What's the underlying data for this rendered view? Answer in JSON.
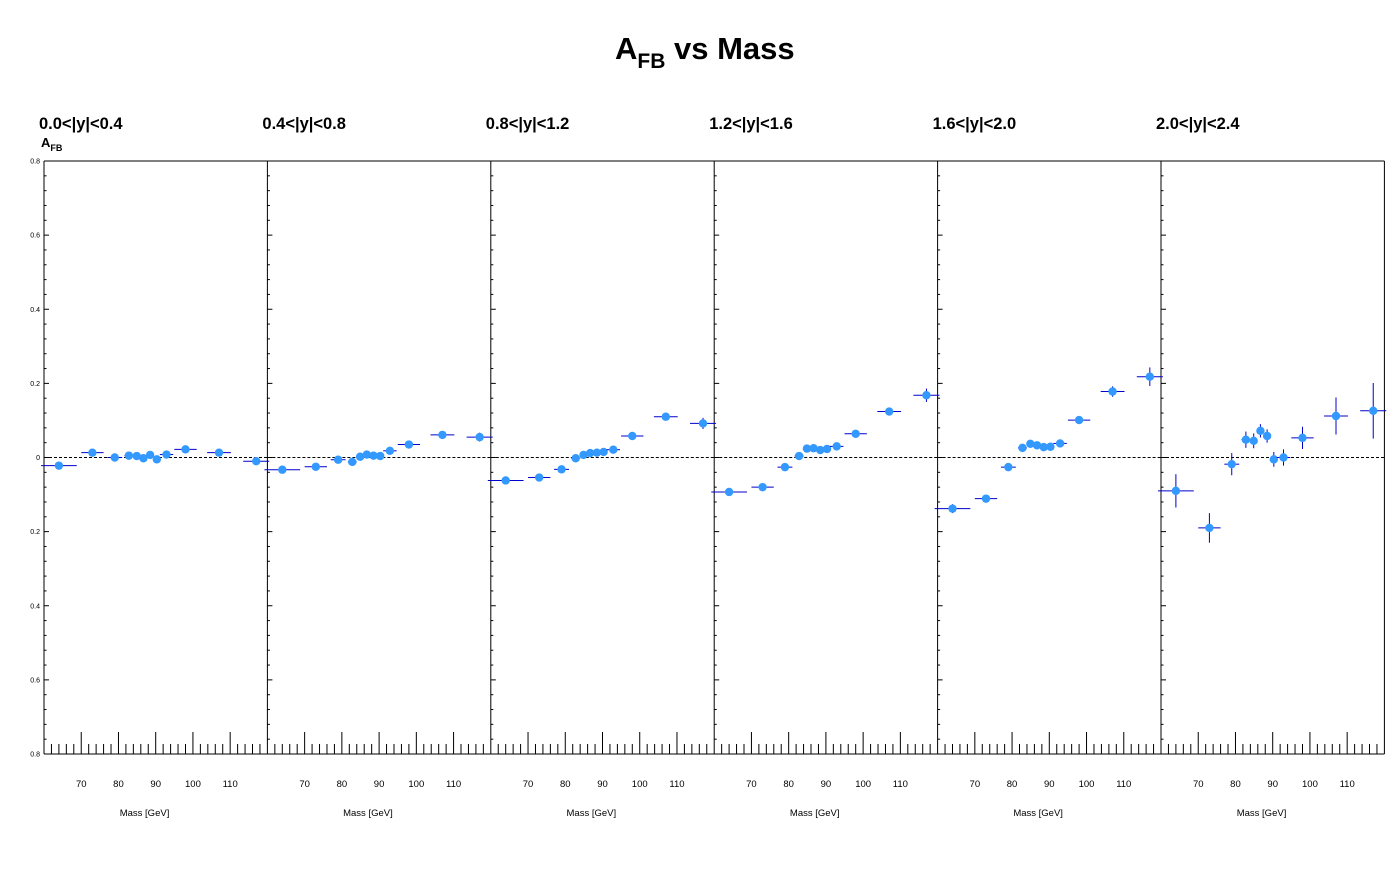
{
  "title_main": "A",
  "title_sub": "FB",
  "title_rest": " vs Mass",
  "ylabel_main": "A",
  "ylabel_sub": "FB",
  "xlabel": "Mass [GeV]",
  "y_tick_labels": [
    "0.8",
    "0.6",
    "0.4",
    "0.2",
    "0",
    "0.2",
    "0.4",
    "0.6",
    "0.8"
  ],
  "x_tick_labels": [
    "70",
    "80",
    "90",
    "100",
    "110"
  ],
  "colors": {
    "marker": "#3399ff",
    "errorbar": "#0000cc",
    "axis": "#000000",
    "zero_line": "#000000"
  },
  "chart_data": [
    {
      "type": "scatter",
      "label": "0.0<|y|<0.4",
      "xlim": [
        60,
        120
      ],
      "ylim": [
        -0.8,
        0.8
      ],
      "points": [
        {
          "x": 64,
          "y": -0.022,
          "xerr": 4.8,
          "yerr": 0.006
        },
        {
          "x": 73,
          "y": 0.013,
          "xerr": 3.0,
          "yerr": 0.005
        },
        {
          "x": 79,
          "y": 0.0,
          "xerr": 2.0,
          "yerr": 0.004
        },
        {
          "x": 82.8,
          "y": 0.005,
          "xerr": 1.2,
          "yerr": 0.004
        },
        {
          "x": 84.9,
          "y": 0.004,
          "xerr": 0.9,
          "yerr": 0.004
        },
        {
          "x": 86.7,
          "y": -0.002,
          "xerr": 0.9,
          "yerr": 0.004
        },
        {
          "x": 88.5,
          "y": 0.007,
          "xerr": 0.9,
          "yerr": 0.004
        },
        {
          "x": 90.3,
          "y": -0.005,
          "xerr": 0.9,
          "yerr": 0.004
        },
        {
          "x": 92.9,
          "y": 0.008,
          "xerr": 1.8,
          "yerr": 0.004
        },
        {
          "x": 98,
          "y": 0.022,
          "xerr": 3.0,
          "yerr": 0.005
        },
        {
          "x": 107,
          "y": 0.013,
          "xerr": 3.2,
          "yerr": 0.006
        },
        {
          "x": 117,
          "y": -0.01,
          "xerr": 3.5,
          "yerr": 0.01
        }
      ]
    },
    {
      "type": "scatter",
      "label": "0.4<|y|<0.8",
      "xlim": [
        60,
        120
      ],
      "ylim": [
        -0.8,
        0.8
      ],
      "points": [
        {
          "x": 64,
          "y": -0.033,
          "xerr": 4.8,
          "yerr": 0.006
        },
        {
          "x": 73,
          "y": -0.025,
          "xerr": 3.0,
          "yerr": 0.005
        },
        {
          "x": 79,
          "y": -0.006,
          "xerr": 2.0,
          "yerr": 0.004
        },
        {
          "x": 82.8,
          "y": -0.012,
          "xerr": 1.2,
          "yerr": 0.004
        },
        {
          "x": 84.9,
          "y": 0.002,
          "xerr": 0.9,
          "yerr": 0.004
        },
        {
          "x": 86.7,
          "y": 0.008,
          "xerr": 0.9,
          "yerr": 0.004
        },
        {
          "x": 88.5,
          "y": 0.005,
          "xerr": 0.9,
          "yerr": 0.004
        },
        {
          "x": 90.3,
          "y": 0.004,
          "xerr": 0.9,
          "yerr": 0.004
        },
        {
          "x": 92.9,
          "y": 0.018,
          "xerr": 1.8,
          "yerr": 0.004
        },
        {
          "x": 98,
          "y": 0.035,
          "xerr": 3.0,
          "yerr": 0.005
        },
        {
          "x": 107,
          "y": 0.061,
          "xerr": 3.2,
          "yerr": 0.007
        },
        {
          "x": 117,
          "y": 0.055,
          "xerr": 3.5,
          "yerr": 0.012
        }
      ]
    },
    {
      "type": "scatter",
      "label": "0.8<|y|<1.2",
      "xlim": [
        60,
        120
      ],
      "ylim": [
        -0.8,
        0.8
      ],
      "points": [
        {
          "x": 64,
          "y": -0.062,
          "xerr": 4.8,
          "yerr": 0.006
        },
        {
          "x": 73,
          "y": -0.054,
          "xerr": 3.0,
          "yerr": 0.005
        },
        {
          "x": 79,
          "y": -0.032,
          "xerr": 2.0,
          "yerr": 0.004
        },
        {
          "x": 82.8,
          "y": -0.002,
          "xerr": 1.2,
          "yerr": 0.004
        },
        {
          "x": 84.9,
          "y": 0.007,
          "xerr": 0.9,
          "yerr": 0.004
        },
        {
          "x": 86.7,
          "y": 0.012,
          "xerr": 0.9,
          "yerr": 0.004
        },
        {
          "x": 88.5,
          "y": 0.013,
          "xerr": 0.9,
          "yerr": 0.004
        },
        {
          "x": 90.3,
          "y": 0.015,
          "xerr": 0.9,
          "yerr": 0.004
        },
        {
          "x": 92.9,
          "y": 0.021,
          "xerr": 1.8,
          "yerr": 0.004
        },
        {
          "x": 98,
          "y": 0.058,
          "xerr": 3.0,
          "yerr": 0.005
        },
        {
          "x": 107,
          "y": 0.11,
          "xerr": 3.2,
          "yerr": 0.008
        },
        {
          "x": 117,
          "y": 0.092,
          "xerr": 3.5,
          "yerr": 0.015
        }
      ]
    },
    {
      "type": "scatter",
      "label": "1.2<|y|<1.6",
      "xlim": [
        60,
        120
      ],
      "ylim": [
        -0.8,
        0.8
      ],
      "points": [
        {
          "x": 64,
          "y": -0.093,
          "xerr": 4.8,
          "yerr": 0.007
        },
        {
          "x": 73,
          "y": -0.08,
          "xerr": 3.0,
          "yerr": 0.006
        },
        {
          "x": 79,
          "y": -0.026,
          "xerr": 2.0,
          "yerr": 0.005
        },
        {
          "x": 82.8,
          "y": 0.004,
          "xerr": 1.2,
          "yerr": 0.004
        },
        {
          "x": 84.9,
          "y": 0.024,
          "xerr": 0.9,
          "yerr": 0.004
        },
        {
          "x": 86.7,
          "y": 0.025,
          "xerr": 0.9,
          "yerr": 0.004
        },
        {
          "x": 88.5,
          "y": 0.02,
          "xerr": 0.9,
          "yerr": 0.004
        },
        {
          "x": 90.3,
          "y": 0.023,
          "xerr": 0.9,
          "yerr": 0.004
        },
        {
          "x": 92.9,
          "y": 0.03,
          "xerr": 1.8,
          "yerr": 0.004
        },
        {
          "x": 98,
          "y": 0.064,
          "xerr": 3.0,
          "yerr": 0.006
        },
        {
          "x": 107,
          "y": 0.124,
          "xerr": 3.2,
          "yerr": 0.009
        },
        {
          "x": 117,
          "y": 0.168,
          "xerr": 3.5,
          "yerr": 0.018
        }
      ]
    },
    {
      "type": "scatter",
      "label": "1.6<|y|<2.0",
      "xlim": [
        60,
        120
      ],
      "ylim": [
        -0.8,
        0.8
      ],
      "points": [
        {
          "x": 64,
          "y": -0.138,
          "xerr": 4.8,
          "yerr": 0.012
        },
        {
          "x": 73,
          "y": -0.111,
          "xerr": 3.0,
          "yerr": 0.009
        },
        {
          "x": 79,
          "y": -0.026,
          "xerr": 2.0,
          "yerr": 0.007
        },
        {
          "x": 82.8,
          "y": 0.026,
          "xerr": 1.2,
          "yerr": 0.006
        },
        {
          "x": 84.9,
          "y": 0.037,
          "xerr": 0.9,
          "yerr": 0.005
        },
        {
          "x": 86.7,
          "y": 0.033,
          "xerr": 0.9,
          "yerr": 0.005
        },
        {
          "x": 88.5,
          "y": 0.028,
          "xerr": 0.9,
          "yerr": 0.005
        },
        {
          "x": 90.3,
          "y": 0.029,
          "xerr": 0.9,
          "yerr": 0.005
        },
        {
          "x": 92.9,
          "y": 0.038,
          "xerr": 1.8,
          "yerr": 0.006
        },
        {
          "x": 98,
          "y": 0.101,
          "xerr": 3.0,
          "yerr": 0.008
        },
        {
          "x": 107,
          "y": 0.178,
          "xerr": 3.2,
          "yerr": 0.014
        },
        {
          "x": 117,
          "y": 0.218,
          "xerr": 3.5,
          "yerr": 0.025
        }
      ]
    },
    {
      "type": "scatter",
      "label": "2.0<|y|<2.4",
      "xlim": [
        60,
        120
      ],
      "ylim": [
        -0.8,
        0.8
      ],
      "points": [
        {
          "x": 64,
          "y": -0.09,
          "xerr": 4.8,
          "yerr": 0.045
        },
        {
          "x": 73,
          "y": -0.19,
          "xerr": 3.0,
          "yerr": 0.04
        },
        {
          "x": 79,
          "y": -0.018,
          "xerr": 2.0,
          "yerr": 0.03
        },
        {
          "x": 82.8,
          "y": 0.048,
          "xerr": 1.2,
          "yerr": 0.022
        },
        {
          "x": 84.9,
          "y": 0.045,
          "xerr": 0.9,
          "yerr": 0.02
        },
        {
          "x": 86.7,
          "y": 0.072,
          "xerr": 0.9,
          "yerr": 0.018
        },
        {
          "x": 88.5,
          "y": 0.058,
          "xerr": 0.9,
          "yerr": 0.018
        },
        {
          "x": 90.3,
          "y": -0.005,
          "xerr": 0.9,
          "yerr": 0.02
        },
        {
          "x": 92.9,
          "y": 0.0,
          "xerr": 1.8,
          "yerr": 0.022
        },
        {
          "x": 98,
          "y": 0.053,
          "xerr": 3.0,
          "yerr": 0.03
        },
        {
          "x": 107,
          "y": 0.112,
          "xerr": 3.2,
          "yerr": 0.05
        },
        {
          "x": 117,
          "y": 0.126,
          "xerr": 3.5,
          "yerr": 0.075
        }
      ]
    }
  ]
}
